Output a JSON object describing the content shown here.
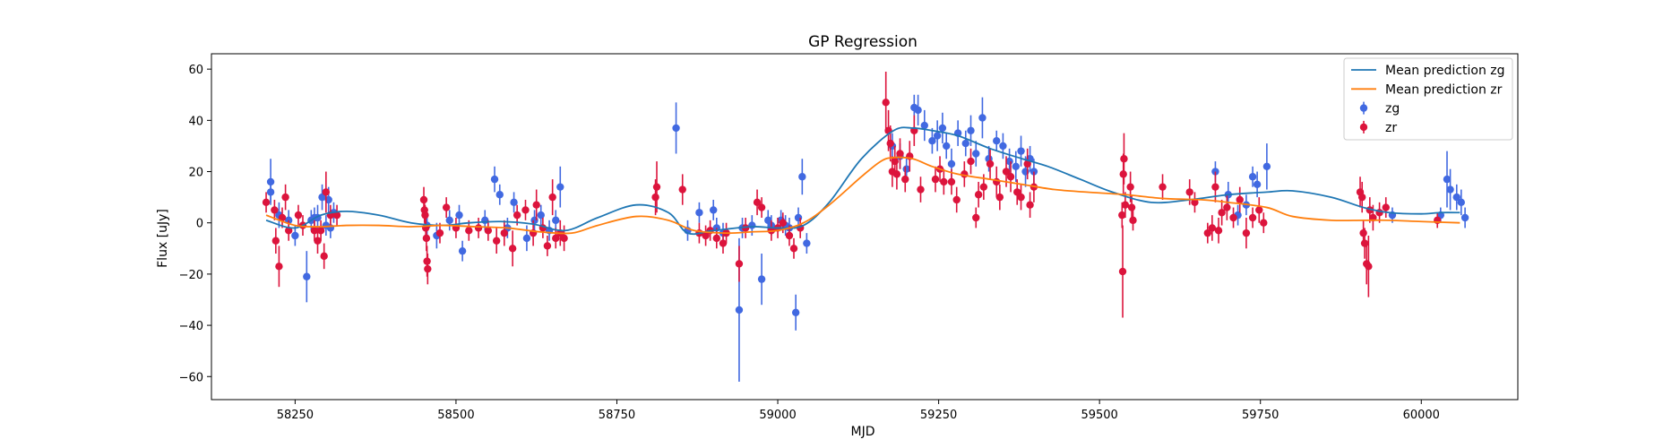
{
  "chart_data": {
    "type": "scatter",
    "title": "GP Regression",
    "xlabel": "MJD",
    "ylabel": "Flux [uJy]",
    "xlim": [
      58120,
      60150
    ],
    "ylim": [
      -69,
      66
    ],
    "xticks": [
      58250,
      58500,
      58750,
      59000,
      59250,
      59500,
      59750,
      60000
    ],
    "yticks": [
      -60,
      -40,
      -20,
      0,
      20,
      40,
      60
    ],
    "tick_labels": {
      "x": [
        "58250",
        "58500",
        "58750",
        "59000",
        "59250",
        "59500",
        "59750",
        "60000"
      ],
      "y": [
        "−60",
        "−40",
        "−20",
        "0",
        "20",
        "40",
        "60"
      ]
    },
    "grid": false,
    "legend": {
      "placement": "top-right",
      "entries": [
        "Mean prediction zg",
        "Mean prediction zr",
        "zg",
        "zr"
      ]
    },
    "colors": {
      "zg_line": "#1f77b4",
      "zr_line": "#ff7f0e",
      "zg_points": "#4169e1",
      "zr_points": "#dc143c"
    },
    "series": [
      {
        "name": "Mean prediction zg",
        "kind": "line",
        "x": [
          58205,
          58250,
          58290,
          58330,
          58380,
          58430,
          58480,
          58520,
          58570,
          58620,
          58670,
          58720,
          58780,
          58830,
          58860,
          58900,
          58960,
          59000,
          59040,
          59080,
          59130,
          59180,
          59210,
          59240,
          59280,
          59330,
          59380,
          59420,
          59470,
          59520,
          59580,
          59640,
          59700,
          59760,
          59800,
          59860,
          59910,
          59950,
          60000,
          60030,
          60060
        ],
        "y": [
          1,
          -2,
          3,
          4.5,
          3,
          0,
          -1,
          0,
          0.5,
          -0.5,
          -3,
          2,
          7,
          4,
          -4,
          -3,
          -1.5,
          -2,
          -1,
          8,
          25,
          36,
          37,
          36,
          34,
          29,
          25,
          22,
          17,
          12,
          8,
          9,
          11,
          12,
          12.5,
          10,
          6,
          4,
          3.5,
          4,
          4
        ]
      },
      {
        "name": "Mean prediction zr",
        "kind": "line",
        "x": [
          58205,
          58250,
          58290,
          58330,
          58380,
          58430,
          58480,
          58530,
          58580,
          58630,
          58680,
          58720,
          58780,
          58830,
          58870,
          58920,
          58960,
          59000,
          59040,
          59080,
          59130,
          59160,
          59180,
          59210,
          59240,
          59280,
          59330,
          59380,
          59430,
          59480,
          59540,
          59600,
          59660,
          59700,
          59760,
          59800,
          59860,
          59910,
          59950,
          60000,
          60060
        ],
        "y": [
          3,
          -1,
          -1.5,
          -1,
          -1,
          -1.5,
          -1,
          -1.5,
          -2,
          -3.5,
          -4,
          -1,
          2.5,
          1,
          -3,
          -4,
          -3.5,
          -3,
          0,
          7,
          18,
          24,
          25.5,
          25,
          22,
          19,
          17,
          15,
          13,
          12,
          11,
          9.5,
          9,
          8,
          6,
          2.5,
          1,
          1,
          1,
          0.5,
          0
        ]
      },
      {
        "name": "zg",
        "kind": "errorbar",
        "points": [
          [
            58212,
            12,
            4
          ],
          [
            58212,
            16,
            9
          ],
          [
            58225,
            3,
            5
          ],
          [
            58240,
            1,
            4
          ],
          [
            58250,
            -5,
            4
          ],
          [
            58268,
            -21,
            10
          ],
          [
            58275,
            1,
            4
          ],
          [
            58280,
            2,
            4
          ],
          [
            58285,
            2,
            5
          ],
          [
            58292,
            10,
            5
          ],
          [
            58298,
            -1,
            4
          ],
          [
            58302,
            9,
            5
          ],
          [
            58305,
            -2,
            4
          ],
          [
            58310,
            4,
            4
          ],
          [
            58455,
            -1,
            5
          ],
          [
            58470,
            -5,
            5
          ],
          [
            58490,
            1,
            4
          ],
          [
            58505,
            3,
            4
          ],
          [
            58510,
            -11,
            4
          ],
          [
            58545,
            1,
            4
          ],
          [
            58560,
            17,
            5
          ],
          [
            58568,
            11,
            4
          ],
          [
            58580,
            -2,
            4
          ],
          [
            58590,
            8,
            4
          ],
          [
            58610,
            -6,
            5
          ],
          [
            58622,
            1,
            4
          ],
          [
            58632,
            3,
            4
          ],
          [
            58645,
            -3,
            4
          ],
          [
            58655,
            1,
            4
          ],
          [
            58662,
            14,
            8
          ],
          [
            58842,
            37,
            10
          ],
          [
            58860,
            -3,
            4
          ],
          [
            58878,
            4,
            4
          ],
          [
            58900,
            5,
            4
          ],
          [
            58905,
            -2,
            4
          ],
          [
            58915,
            -4,
            4
          ],
          [
            58940,
            -34,
            28
          ],
          [
            58945,
            -2,
            4
          ],
          [
            58960,
            -1,
            4
          ],
          [
            58975,
            -22,
            10
          ],
          [
            58985,
            1,
            4
          ],
          [
            58990,
            -1,
            4
          ],
          [
            59005,
            1,
            4
          ],
          [
            59012,
            -1,
            4
          ],
          [
            59018,
            -2,
            4
          ],
          [
            59028,
            -35,
            7
          ],
          [
            59032,
            2,
            4
          ],
          [
            59038,
            18,
            7
          ],
          [
            59045,
            -8,
            4
          ],
          [
            59178,
            30,
            5
          ],
          [
            59190,
            26,
            5
          ],
          [
            59200,
            21,
            5
          ],
          [
            59212,
            45,
            5
          ],
          [
            59218,
            44,
            6
          ],
          [
            59228,
            38,
            6
          ],
          [
            59240,
            32,
            5
          ],
          [
            59248,
            34,
            6
          ],
          [
            59256,
            37,
            6
          ],
          [
            59262,
            30,
            5
          ],
          [
            59270,
            23,
            6
          ],
          [
            59280,
            35,
            5
          ],
          [
            59292,
            31,
            5
          ],
          [
            59300,
            36,
            6
          ],
          [
            59308,
            27,
            5
          ],
          [
            59318,
            41,
            8
          ],
          [
            59328,
            25,
            5
          ],
          [
            59340,
            32,
            4
          ],
          [
            59350,
            30,
            5
          ],
          [
            59360,
            24,
            5
          ],
          [
            59370,
            22,
            6
          ],
          [
            59378,
            28,
            6
          ],
          [
            59385,
            20,
            6
          ],
          [
            59392,
            25,
            5
          ],
          [
            59398,
            20,
            5
          ],
          [
            59680,
            20,
            4
          ],
          [
            59700,
            11,
            5
          ],
          [
            59715,
            3,
            4
          ],
          [
            59728,
            7,
            4
          ],
          [
            59738,
            18,
            4
          ],
          [
            59745,
            15,
            5
          ],
          [
            59760,
            22,
            9
          ],
          [
            59955,
            3,
            3
          ],
          [
            60030,
            3,
            3
          ],
          [
            60040,
            17,
            11
          ],
          [
            60045,
            13,
            8
          ],
          [
            60055,
            10,
            5
          ],
          [
            60062,
            8,
            5
          ],
          [
            60068,
            2,
            4
          ]
        ]
      },
      {
        "name": "zr",
        "kind": "errorbar",
        "points": [
          [
            58205,
            8,
            4
          ],
          [
            58218,
            5,
            4
          ],
          [
            58220,
            -7,
            5
          ],
          [
            58225,
            -17,
            8
          ],
          [
            58230,
            2,
            4
          ],
          [
            58235,
            10,
            5
          ],
          [
            58240,
            -3,
            4
          ],
          [
            58255,
            3,
            4
          ],
          [
            58262,
            -1,
            4
          ],
          [
            58280,
            -3,
            4
          ],
          [
            58285,
            -7,
            5
          ],
          [
            58290,
            -3,
            4
          ],
          [
            58295,
            -13,
            5
          ],
          [
            58298,
            12,
            8
          ],
          [
            58305,
            3,
            4
          ],
          [
            58315,
            3,
            4
          ],
          [
            58450,
            9,
            5
          ],
          [
            58451,
            5,
            5
          ],
          [
            58452,
            3,
            4
          ],
          [
            58453,
            -2,
            4
          ],
          [
            58454,
            -6,
            5
          ],
          [
            58455,
            -15,
            6
          ],
          [
            58456,
            -18,
            6
          ],
          [
            58475,
            -4,
            4
          ],
          [
            58485,
            6,
            4
          ],
          [
            58500,
            -2,
            4
          ],
          [
            58520,
            -3,
            4
          ],
          [
            58535,
            -2,
            4
          ],
          [
            58550,
            -3,
            4
          ],
          [
            58563,
            -7,
            5
          ],
          [
            58575,
            -4,
            5
          ],
          [
            58588,
            -10,
            7
          ],
          [
            58595,
            3,
            4
          ],
          [
            58608,
            5,
            4
          ],
          [
            58620,
            -4,
            5
          ],
          [
            58625,
            7,
            6
          ],
          [
            58635,
            -2,
            4
          ],
          [
            58642,
            -9,
            4
          ],
          [
            58650,
            10,
            7
          ],
          [
            58655,
            -6,
            4
          ],
          [
            58662,
            -4,
            5
          ],
          [
            58668,
            -6,
            5
          ],
          [
            58810,
            10,
            7
          ],
          [
            58812,
            14,
            10
          ],
          [
            58852,
            13,
            6
          ],
          [
            58878,
            -4,
            4
          ],
          [
            58888,
            -5,
            4
          ],
          [
            58895,
            -3,
            4
          ],
          [
            58905,
            -6,
            4
          ],
          [
            58915,
            -8,
            4
          ],
          [
            58920,
            -4,
            4
          ],
          [
            58940,
            -16,
            7
          ],
          [
            58950,
            -2,
            4
          ],
          [
            58968,
            8,
            5
          ],
          [
            58975,
            6,
            4
          ],
          [
            58990,
            -3,
            4
          ],
          [
            59000,
            -2,
            4
          ],
          [
            59008,
            0,
            4
          ],
          [
            59018,
            -5,
            4
          ],
          [
            59025,
            -10,
            4
          ],
          [
            59035,
            -2,
            4
          ],
          [
            59168,
            47,
            12
          ],
          [
            59172,
            36,
            8
          ],
          [
            59175,
            31,
            7
          ],
          [
            59178,
            20,
            6
          ],
          [
            59182,
            24,
            6
          ],
          [
            59185,
            19,
            6
          ],
          [
            59190,
            27,
            6
          ],
          [
            59198,
            17,
            5
          ],
          [
            59205,
            26,
            6
          ],
          [
            59212,
            36,
            6
          ],
          [
            59222,
            13,
            5
          ],
          [
            59245,
            17,
            5
          ],
          [
            59252,
            21,
            5
          ],
          [
            59258,
            16,
            5
          ],
          [
            59270,
            16,
            5
          ],
          [
            59278,
            9,
            5
          ],
          [
            59290,
            19,
            5
          ],
          [
            59300,
            24,
            5
          ],
          [
            59308,
            2,
            4
          ],
          [
            59312,
            11,
            5
          ],
          [
            59320,
            14,
            5
          ],
          [
            59330,
            23,
            6
          ],
          [
            59340,
            16,
            6
          ],
          [
            59345,
            10,
            5
          ],
          [
            59355,
            20,
            6
          ],
          [
            59362,
            18,
            6
          ],
          [
            59372,
            12,
            5
          ],
          [
            59378,
            10,
            5
          ],
          [
            59388,
            23,
            6
          ],
          [
            59392,
            7,
            5
          ],
          [
            59398,
            14,
            6
          ],
          [
            59535,
            3,
            5
          ],
          [
            59536,
            -19,
            18
          ],
          [
            59537,
            19,
            8
          ],
          [
            59538,
            25,
            10
          ],
          [
            59540,
            7,
            5
          ],
          [
            59548,
            14,
            6
          ],
          [
            59550,
            6,
            5
          ],
          [
            59552,
            1,
            4
          ],
          [
            59598,
            14,
            5
          ],
          [
            59640,
            12,
            5
          ],
          [
            59648,
            8,
            4
          ],
          [
            59668,
            -4,
            4
          ],
          [
            59675,
            -2,
            5
          ],
          [
            59680,
            14,
            6
          ],
          [
            59685,
            -3,
            5
          ],
          [
            59690,
            4,
            5
          ],
          [
            59698,
            6,
            5
          ],
          [
            59708,
            2,
            4
          ],
          [
            59718,
            9,
            5
          ],
          [
            59728,
            -4,
            6
          ],
          [
            59738,
            2,
            4
          ],
          [
            59748,
            5,
            5
          ],
          [
            59755,
            0,
            4
          ],
          [
            59905,
            12,
            6
          ],
          [
            59908,
            10,
            6
          ],
          [
            59910,
            -4,
            5
          ],
          [
            59912,
            -8,
            6
          ],
          [
            59915,
            -16,
            8
          ],
          [
            59918,
            -17,
            12
          ],
          [
            59920,
            5,
            5
          ],
          [
            59925,
            2,
            5
          ],
          [
            59935,
            4,
            4
          ],
          [
            59945,
            6,
            4
          ],
          [
            60025,
            1,
            3
          ]
        ]
      }
    ]
  }
}
